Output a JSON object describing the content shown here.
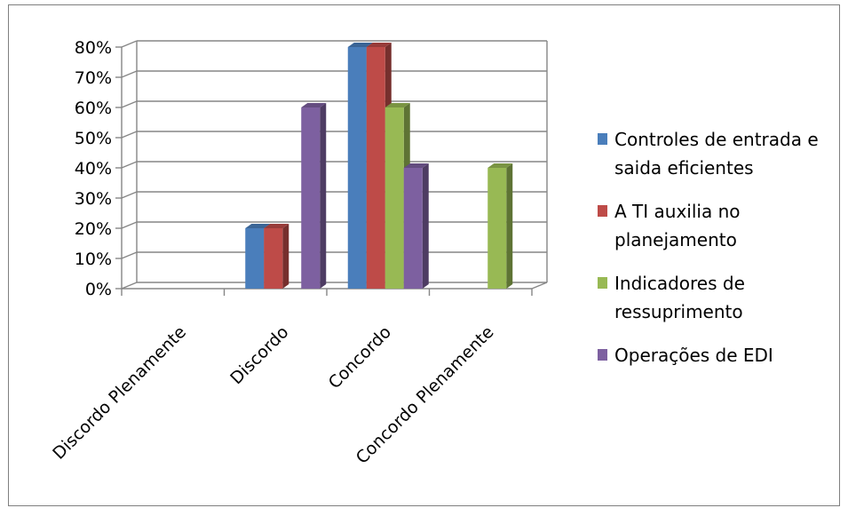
{
  "chart_data": {
    "type": "bar",
    "title": "",
    "xlabel": "",
    "ylabel": "",
    "ylim": [
      0,
      0.8
    ],
    "y_tick_format": "percent",
    "y_ticks": [
      "0%",
      "10%",
      "20%",
      "30%",
      "40%",
      "50%",
      "60%",
      "70%",
      "80%"
    ],
    "categories": [
      "Discordo Plenamente",
      "Discordo",
      "Concordo",
      "Concordo Plenamente"
    ],
    "series": [
      {
        "name": "Controles de entrada e saida eficientes",
        "values": [
          0,
          0.2,
          0.8,
          0
        ],
        "color": "#4a7ebb"
      },
      {
        "name": "A TI auxilia no planejamento",
        "values": [
          0,
          0.2,
          0.8,
          0
        ],
        "color": "#be4b48"
      },
      {
        "name": "Indicadores de ressuprimento",
        "values": [
          0,
          0,
          0.6,
          0.4
        ],
        "color": "#98b954"
      },
      {
        "name": "Operações de EDI",
        "values": [
          0,
          0.6,
          0.4,
          0
        ],
        "color": "#7d60a0"
      }
    ],
    "legend_position": "right",
    "grid": true,
    "style": "3d-clustered-column"
  }
}
